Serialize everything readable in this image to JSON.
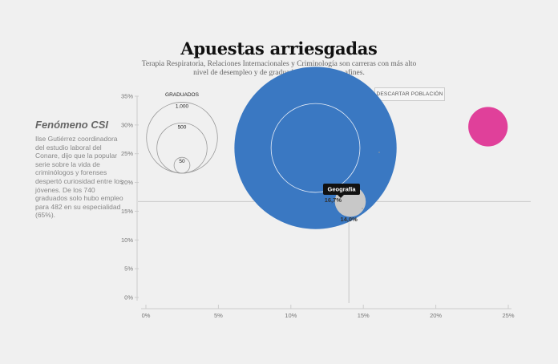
{
  "header": {
    "title": "Apuestas arriesgadas",
    "subtitle": "Terapia Respiratoria, Relaciones Internacionales y Criminología son carreras con más alto nivel de desempleo y de graduados en labores no afines."
  },
  "sidebar": {
    "heading": "Fenómeno CSI",
    "text": "Ilse Gutiérrez coordinadora del estudio laboral del Conare, dijo que la popular serie sobre la vida de criminólogos y forenses despertó curiosidad entre los jóvenes. De los 740 graduados solo hubo empleo para 482 en su especialidad (65%)."
  },
  "controls": {
    "dismiss_label": "DESCARTAR POBLACIÓN"
  },
  "chart_data": {
    "type": "scatter",
    "xlim": [
      0,
      25
    ],
    "ylim": [
      0,
      35
    ],
    "x_ticks": [
      "0%",
      "5%",
      "10%",
      "15%",
      "20%",
      "25%"
    ],
    "y_ticks": [
      "0%",
      "5%",
      "10%",
      "15%",
      "20%",
      "25%",
      "30%",
      "35%"
    ],
    "size_legend": {
      "title": "GRADUADOS",
      "entries": [
        {
          "label": "1.000",
          "value": 1000
        },
        {
          "label": "500",
          "value": 500
        },
        {
          "label": "50",
          "value": 50
        }
      ]
    },
    "reference_lines": {
      "x": 14.0,
      "y": 16.7,
      "x_label": "14,0%",
      "y_label": "16,7%"
    },
    "points": [
      {
        "x": 11.7,
        "y": 26.0,
        "size": 1100,
        "color": "#3a78c2",
        "inner_size": 330
      },
      {
        "x": 23.6,
        "y": 29.7,
        "size": 65,
        "color": "#e0409a"
      },
      {
        "x": 14.1,
        "y": 16.7,
        "size": 40,
        "color": "#c8c8c8",
        "label": "Geografía"
      }
    ],
    "colors": {
      "axis": "#cccccc",
      "reference": "#bbbbbb",
      "tooltip": "#111111"
    }
  }
}
